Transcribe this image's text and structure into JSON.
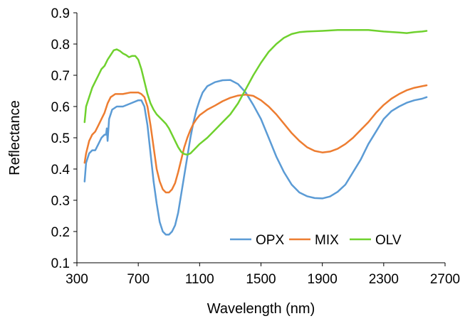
{
  "chart_data": {
    "type": "line",
    "title": "",
    "xlabel": "Wavelength (nm)",
    "ylabel": "Reflectance",
    "xlim": [
      300,
      2700
    ],
    "ylim": [
      0.1,
      0.9
    ],
    "xticks": [
      300,
      700,
      1100,
      1500,
      1900,
      2300,
      2700
    ],
    "yticks": [
      0.1,
      0.2,
      0.3,
      0.4,
      0.5,
      0.6,
      0.7,
      0.8,
      0.9
    ],
    "xtick_labels": [
      "300",
      "700",
      "1100",
      "1500",
      "1900",
      "2300",
      "2700"
    ],
    "ytick_labels": [
      "0.1",
      "0.2",
      "0.3",
      "0.4",
      "0.5",
      "0.6",
      "0.7",
      "0.8",
      "0.9"
    ],
    "grid": false,
    "legend_position": "bottom-right",
    "series": [
      {
        "name": "OPX",
        "color": "#5B9BD5",
        "points": [
          [
            350,
            0.36
          ],
          [
            360,
            0.42
          ],
          [
            380,
            0.45
          ],
          [
            400,
            0.46
          ],
          [
            420,
            0.46
          ],
          [
            440,
            0.48
          ],
          [
            460,
            0.5
          ],
          [
            480,
            0.51
          ],
          [
            490,
            0.51
          ],
          [
            495,
            0.53
          ],
          [
            500,
            0.49
          ],
          [
            510,
            0.56
          ],
          [
            530,
            0.59
          ],
          [
            560,
            0.6
          ],
          [
            600,
            0.6
          ],
          [
            650,
            0.61
          ],
          [
            700,
            0.62
          ],
          [
            720,
            0.62
          ],
          [
            740,
            0.6
          ],
          [
            760,
            0.54
          ],
          [
            780,
            0.45
          ],
          [
            800,
            0.36
          ],
          [
            820,
            0.29
          ],
          [
            840,
            0.23
          ],
          [
            860,
            0.2
          ],
          [
            880,
            0.19
          ],
          [
            900,
            0.19
          ],
          [
            920,
            0.2
          ],
          [
            940,
            0.22
          ],
          [
            960,
            0.26
          ],
          [
            980,
            0.32
          ],
          [
            1000,
            0.38
          ],
          [
            1020,
            0.44
          ],
          [
            1040,
            0.5
          ],
          [
            1060,
            0.55
          ],
          [
            1080,
            0.59
          ],
          [
            1100,
            0.62
          ],
          [
            1120,
            0.645
          ],
          [
            1150,
            0.665
          ],
          [
            1200,
            0.678
          ],
          [
            1250,
            0.684
          ],
          [
            1300,
            0.685
          ],
          [
            1350,
            0.672
          ],
          [
            1400,
            0.645
          ],
          [
            1450,
            0.605
          ],
          [
            1500,
            0.56
          ],
          [
            1550,
            0.5
          ],
          [
            1600,
            0.44
          ],
          [
            1650,
            0.39
          ],
          [
            1700,
            0.35
          ],
          [
            1750,
            0.325
          ],
          [
            1800,
            0.313
          ],
          [
            1850,
            0.307
          ],
          [
            1900,
            0.306
          ],
          [
            1950,
            0.312
          ],
          [
            2000,
            0.327
          ],
          [
            2050,
            0.35
          ],
          [
            2100,
            0.39
          ],
          [
            2150,
            0.43
          ],
          [
            2200,
            0.48
          ],
          [
            2250,
            0.52
          ],
          [
            2300,
            0.56
          ],
          [
            2350,
            0.585
          ],
          [
            2400,
            0.6
          ],
          [
            2450,
            0.612
          ],
          [
            2500,
            0.62
          ],
          [
            2550,
            0.625
          ],
          [
            2580,
            0.63
          ]
        ]
      },
      {
        "name": "MIX",
        "color": "#ED7D31",
        "points": [
          [
            350,
            0.42
          ],
          [
            360,
            0.45
          ],
          [
            380,
            0.49
          ],
          [
            400,
            0.51
          ],
          [
            420,
            0.52
          ],
          [
            440,
            0.54
          ],
          [
            460,
            0.56
          ],
          [
            480,
            0.58
          ],
          [
            500,
            0.61
          ],
          [
            520,
            0.63
          ],
          [
            550,
            0.64
          ],
          [
            600,
            0.64
          ],
          [
            650,
            0.645
          ],
          [
            700,
            0.645
          ],
          [
            720,
            0.64
          ],
          [
            740,
            0.63
          ],
          [
            760,
            0.6
          ],
          [
            780,
            0.54
          ],
          [
            800,
            0.47
          ],
          [
            820,
            0.4
          ],
          [
            840,
            0.36
          ],
          [
            860,
            0.335
          ],
          [
            880,
            0.325
          ],
          [
            900,
            0.325
          ],
          [
            920,
            0.335
          ],
          [
            940,
            0.355
          ],
          [
            960,
            0.39
          ],
          [
            980,
            0.43
          ],
          [
            1000,
            0.47
          ],
          [
            1020,
            0.5
          ],
          [
            1040,
            0.525
          ],
          [
            1060,
            0.545
          ],
          [
            1080,
            0.56
          ],
          [
            1100,
            0.572
          ],
          [
            1150,
            0.59
          ],
          [
            1200,
            0.603
          ],
          [
            1250,
            0.617
          ],
          [
            1300,
            0.628
          ],
          [
            1350,
            0.635
          ],
          [
            1400,
            0.638
          ],
          [
            1450,
            0.634
          ],
          [
            1500,
            0.62
          ],
          [
            1550,
            0.6
          ],
          [
            1600,
            0.575
          ],
          [
            1650,
            0.545
          ],
          [
            1700,
            0.515
          ],
          [
            1750,
            0.49
          ],
          [
            1800,
            0.47
          ],
          [
            1850,
            0.458
          ],
          [
            1900,
            0.453
          ],
          [
            1950,
            0.456
          ],
          [
            2000,
            0.465
          ],
          [
            2050,
            0.48
          ],
          [
            2100,
            0.5
          ],
          [
            2150,
            0.525
          ],
          [
            2200,
            0.55
          ],
          [
            2250,
            0.58
          ],
          [
            2300,
            0.605
          ],
          [
            2350,
            0.625
          ],
          [
            2400,
            0.64
          ],
          [
            2450,
            0.652
          ],
          [
            2500,
            0.66
          ],
          [
            2550,
            0.665
          ],
          [
            2580,
            0.668
          ]
        ]
      },
      {
        "name": "OLV",
        "color": "#6FD12E",
        "points": [
          [
            350,
            0.55
          ],
          [
            360,
            0.6
          ],
          [
            380,
            0.63
          ],
          [
            400,
            0.66
          ],
          [
            420,
            0.68
          ],
          [
            440,
            0.7
          ],
          [
            460,
            0.72
          ],
          [
            480,
            0.73
          ],
          [
            500,
            0.75
          ],
          [
            520,
            0.765
          ],
          [
            540,
            0.78
          ],
          [
            560,
            0.783
          ],
          [
            580,
            0.778
          ],
          [
            600,
            0.77
          ],
          [
            620,
            0.765
          ],
          [
            640,
            0.758
          ],
          [
            660,
            0.762
          ],
          [
            680,
            0.762
          ],
          [
            700,
            0.75
          ],
          [
            720,
            0.72
          ],
          [
            740,
            0.68
          ],
          [
            760,
            0.64
          ],
          [
            780,
            0.61
          ],
          [
            800,
            0.59
          ],
          [
            820,
            0.575
          ],
          [
            840,
            0.565
          ],
          [
            860,
            0.555
          ],
          [
            880,
            0.545
          ],
          [
            900,
            0.53
          ],
          [
            920,
            0.51
          ],
          [
            940,
            0.49
          ],
          [
            960,
            0.47
          ],
          [
            980,
            0.455
          ],
          [
            1000,
            0.448
          ],
          [
            1020,
            0.446
          ],
          [
            1040,
            0.45
          ],
          [
            1060,
            0.46
          ],
          [
            1080,
            0.47
          ],
          [
            1100,
            0.48
          ],
          [
            1150,
            0.5
          ],
          [
            1200,
            0.525
          ],
          [
            1250,
            0.55
          ],
          [
            1300,
            0.575
          ],
          [
            1350,
            0.61
          ],
          [
            1400,
            0.655
          ],
          [
            1450,
            0.7
          ],
          [
            1500,
            0.74
          ],
          [
            1550,
            0.775
          ],
          [
            1600,
            0.8
          ],
          [
            1650,
            0.82
          ],
          [
            1700,
            0.832
          ],
          [
            1750,
            0.838
          ],
          [
            1800,
            0.84
          ],
          [
            1900,
            0.842
          ],
          [
            2000,
            0.845
          ],
          [
            2100,
            0.845
          ],
          [
            2200,
            0.845
          ],
          [
            2300,
            0.84
          ],
          [
            2400,
            0.837
          ],
          [
            2450,
            0.835
          ],
          [
            2500,
            0.838
          ],
          [
            2550,
            0.84
          ],
          [
            2580,
            0.842
          ]
        ]
      }
    ]
  }
}
